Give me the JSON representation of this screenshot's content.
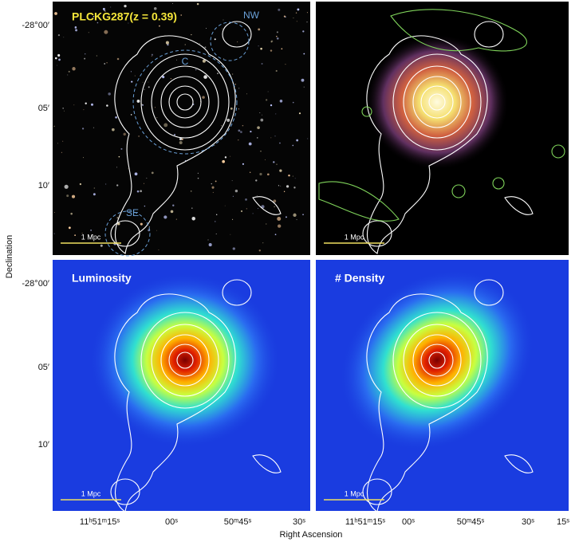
{
  "figure": {
    "panels": [
      {
        "title": "PLCKG287(z = 0.39)",
        "regions": [
          "NW",
          "C",
          "SE"
        ],
        "scale_bar": "1 Mpc"
      },
      {
        "scale_bar": "1 Mpc"
      },
      {
        "title": "Luminosity",
        "scale_bar": "1 Mpc"
      },
      {
        "title": "# Density",
        "scale_bar": "1 Mpc"
      }
    ],
    "y_axis": {
      "title": "Declination",
      "ticks": [
        "-28°00′",
        "05′",
        "10′"
      ]
    },
    "x_axis": {
      "title": "Right Ascension",
      "ticks": [
        "11ʰ51ᵐ15ˢ",
        "00ˢ",
        "50ᵐ45ˢ",
        "30ˢ",
        "15ˢ"
      ]
    }
  }
}
